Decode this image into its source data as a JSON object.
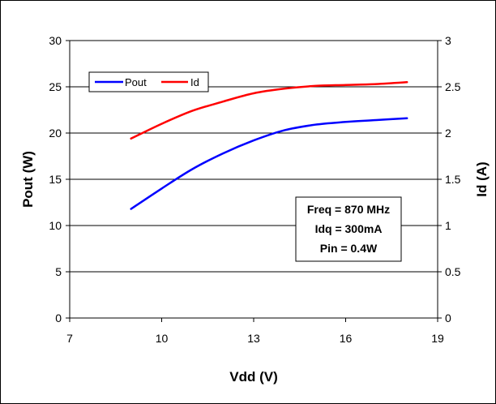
{
  "chart_data": {
    "type": "line",
    "title": "",
    "xlabel": "Vdd (V)",
    "ylabel_left": "Pout (W)",
    "ylabel_right": "Id (A)",
    "xlim": [
      7,
      19
    ],
    "ylim_left": [
      0,
      30
    ],
    "ylim_right": [
      0,
      3
    ],
    "x_ticks": [
      "7",
      "10",
      "13",
      "16",
      "19"
    ],
    "y_left_ticks": [
      "0",
      "5",
      "10",
      "15",
      "20",
      "25",
      "30"
    ],
    "y_right_ticks": [
      "0",
      "0.5",
      "1",
      "1.5",
      "2",
      "2.5",
      "3"
    ],
    "grid": "horizontal",
    "legend_position": "top-left",
    "series": [
      {
        "name": "Pout",
        "axis": "left",
        "color": "#0000ff",
        "x": [
          9,
          10,
          11,
          12,
          13,
          14,
          15,
          16,
          17,
          18
        ],
        "y": [
          11.8,
          14.0,
          16.1,
          17.8,
          19.2,
          20.3,
          20.9,
          21.2,
          21.4,
          21.6
        ]
      },
      {
        "name": "Id",
        "axis": "right",
        "color": "#ff0000",
        "x": [
          9,
          10,
          11,
          12,
          13,
          14,
          15,
          16,
          17,
          18
        ],
        "y": [
          1.94,
          2.1,
          2.24,
          2.34,
          2.43,
          2.48,
          2.51,
          2.52,
          2.53,
          2.55
        ]
      }
    ],
    "annotation": [
      "Freq = 870 MHz",
      "Idq = 300mA",
      "Pin = 0.4W"
    ]
  }
}
